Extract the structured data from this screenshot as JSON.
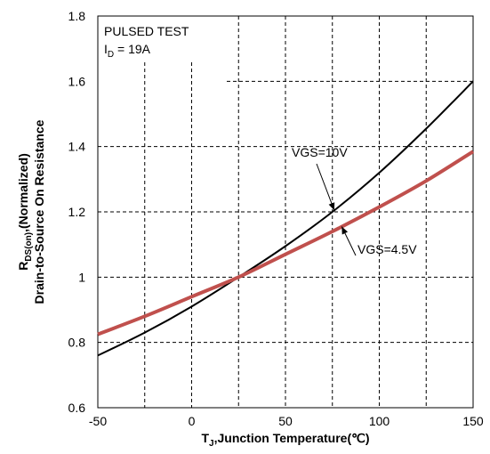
{
  "chart_data": {
    "type": "line",
    "xlabel": {
      "main": "T",
      "sub": "J",
      "rest": ",Junction Temperature(℃)"
    },
    "ylabel": {
      "line1": {
        "main": "R",
        "sub": "DS(on)",
        "rest": ",(Normalized)"
      },
      "line2": "Drain-to-Source On Resistance"
    },
    "xlim": [
      -50,
      150
    ],
    "ylim": [
      0.6,
      1.8
    ],
    "x_ticks": [
      -50,
      0,
      50,
      100,
      150
    ],
    "x_tick_labels": [
      "-50",
      "0",
      "50",
      "100",
      "150"
    ],
    "y_ticks": [
      0.6,
      0.8,
      1.0,
      1.2,
      1.4,
      1.6,
      1.8
    ],
    "y_tick_labels": [
      "0.6",
      "0.8",
      "1",
      "1.2",
      "1.4",
      "1.6",
      "1.8"
    ],
    "grid": true,
    "test_box": {
      "line1": "PULSED TEST",
      "line2": {
        "main": "I",
        "sub": "D",
        "rest": " = 19A"
      }
    },
    "series": [
      {
        "name": "VGS=10V",
        "color": "#000000",
        "x": [
          -50,
          -25,
          0,
          25,
          50,
          75,
          100,
          125,
          150
        ],
        "y": [
          0.76,
          0.83,
          0.91,
          1.0,
          1.095,
          1.2,
          1.32,
          1.455,
          1.6
        ]
      },
      {
        "name": "VGS=4.5V",
        "color": "#c0504d",
        "x": [
          -50,
          -25,
          0,
          25,
          50,
          75,
          100,
          125,
          150
        ],
        "y": [
          0.825,
          0.88,
          0.94,
          1.0,
          1.07,
          1.14,
          1.215,
          1.295,
          1.385
        ]
      }
    ],
    "annotations": [
      {
        "text": "VGS=10V",
        "series": 0,
        "point_x": 76
      },
      {
        "text": "VGS=4.5V",
        "series": 1,
        "point_x": 80
      }
    ]
  }
}
